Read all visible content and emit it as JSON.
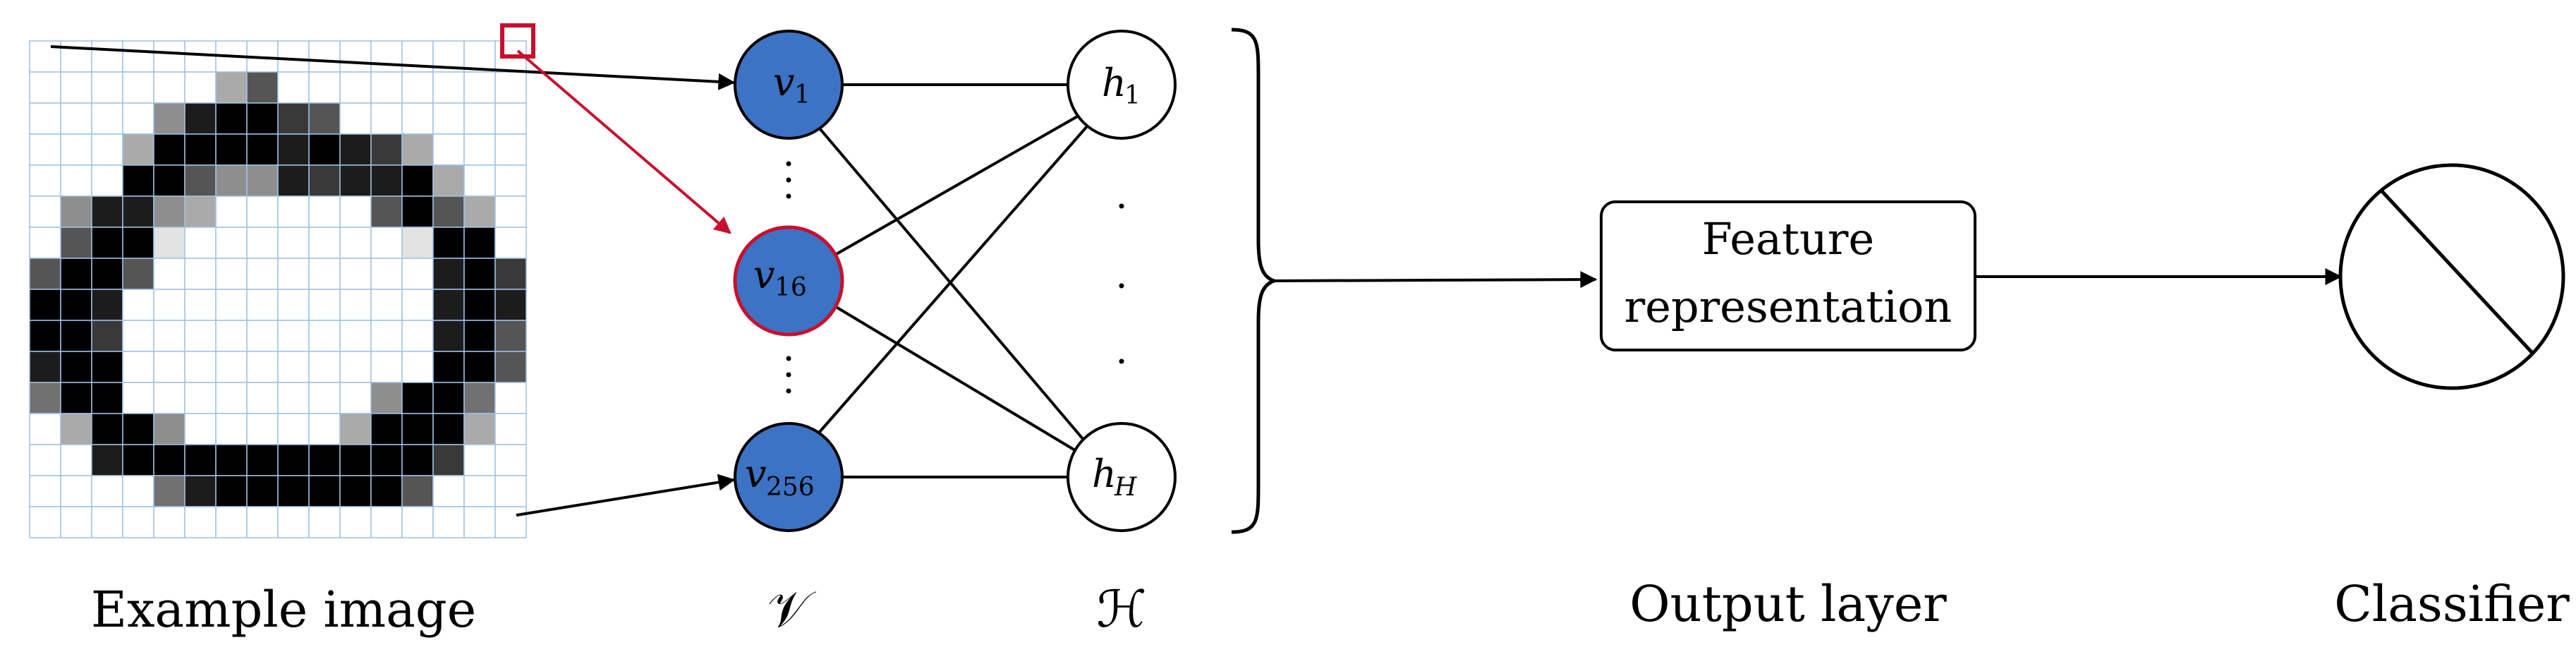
{
  "image_grid": {
    "rows": 16,
    "cols": 16,
    "pixels": [
      "0000000000000000",
      "0000003600000000",
      "0000489976000000",
      "0003999989873000",
      "0009964487889300",
      "0488430000069630",
      "0699100000001990",
      "6996000000000897",
      "9980000000000898",
      "9970000000000896",
      "8990000000000996",
      "5990000000049950",
      "0399400000399930",
      "0089999999999700",
      "0000589999996000",
      "0000000000000000"
    ],
    "highlight_color": "#c8102e",
    "grid_color": "#9ec2e6"
  },
  "nodes": {
    "v1": {
      "base": "v",
      "sub": "1"
    },
    "v16": {
      "base": "v",
      "sub": "16"
    },
    "v256": {
      "base": "v",
      "sub": "256"
    },
    "h1": {
      "base": "h",
      "sub": "1"
    },
    "hH": {
      "base": "h",
      "sub": "H"
    }
  },
  "feature_box": {
    "line1": "Feature",
    "line2": "representation"
  },
  "labels": {
    "example_image": "Example image",
    "visible_layer": "𝒱",
    "hidden_layer": "ℋ",
    "output_layer": "Output layer",
    "classifier": "Classifier"
  },
  "colors": {
    "visible_fill": "#3c73c4",
    "highlight": "#c8102e",
    "grid": "#9ec2e6"
  }
}
